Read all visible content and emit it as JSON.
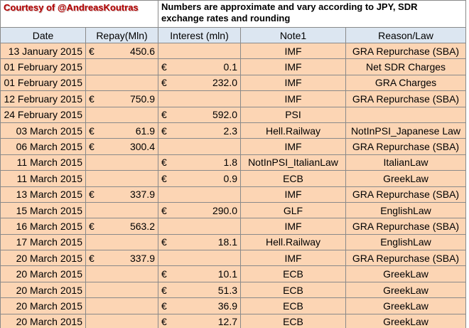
{
  "header": {
    "credit": "Courtesy of @AndreasKoutras",
    "note": "Numbers are approximate and vary according to JPY, SDR exchange rates and rounding"
  },
  "table": {
    "columns": [
      "Date",
      "Repay(Mln)",
      "Interest (mln)",
      "Note1",
      "Reason/Law"
    ],
    "rows": [
      {
        "date": "13 January 2015",
        "repay": {
          "currency": "€",
          "amount": "450.6"
        },
        "interest": null,
        "note": "IMF",
        "reason": "GRA Repurchase (SBA)"
      },
      {
        "date": "01 February 2015",
        "repay": null,
        "interest": {
          "currency": "€",
          "amount": "0.1"
        },
        "note": "IMF",
        "reason": "Net SDR Charges"
      },
      {
        "date": "01 February 2015",
        "repay": null,
        "interest": {
          "currency": "€",
          "amount": "232.0"
        },
        "note": "IMF",
        "reason": "GRA Charges"
      },
      {
        "date": "12 February 2015",
        "repay": {
          "currency": "€",
          "amount": "750.9"
        },
        "interest": null,
        "note": "IMF",
        "reason": "GRA Repurchase (SBA)"
      },
      {
        "date": "24 February 2015",
        "repay": null,
        "interest": {
          "currency": "€",
          "amount": "592.0"
        },
        "note": "PSI",
        "reason": null
      },
      {
        "date": "03 March 2015",
        "repay": {
          "currency": "€",
          "amount": "61.9"
        },
        "interest": {
          "currency": "€",
          "amount": "2.3"
        },
        "note": "Hell.Railway",
        "reason": "NotInPSI_Japanese Law"
      },
      {
        "date": "06 March 2015",
        "repay": {
          "currency": "€",
          "amount": "300.4"
        },
        "interest": null,
        "note": "IMF",
        "reason": "GRA Repurchase (SBA)"
      },
      {
        "date": "11 March 2015",
        "repay": null,
        "interest": {
          "currency": "€",
          "amount": "1.8"
        },
        "note": "NotInPSI_ItalianLaw",
        "reason": "ItalianLaw"
      },
      {
        "date": "11 March 2015",
        "repay": null,
        "interest": {
          "currency": "€",
          "amount": "0.9"
        },
        "note": "ECB",
        "reason": "GreekLaw"
      },
      {
        "date": "13 March 2015",
        "repay": {
          "currency": "€",
          "amount": "337.9"
        },
        "interest": null,
        "note": "IMF",
        "reason": "GRA Repurchase (SBA)"
      },
      {
        "date": "15 March 2015",
        "repay": null,
        "interest": {
          "currency": "€",
          "amount": "290.0"
        },
        "note": "GLF",
        "reason": "EnglishLaw"
      },
      {
        "date": "16 March 2015",
        "repay": {
          "currency": "€",
          "amount": "563.2"
        },
        "interest": null,
        "note": "IMF",
        "reason": "GRA Repurchase (SBA)"
      },
      {
        "date": "17 March 2015",
        "repay": null,
        "interest": {
          "currency": "€",
          "amount": "18.1"
        },
        "note": "Hell.Railway",
        "reason": "EnglishLaw"
      },
      {
        "date": "20 March 2015",
        "repay": {
          "currency": "€",
          "amount": "337.9"
        },
        "interest": null,
        "note": "IMF",
        "reason": "GRA Repurchase (SBA)"
      },
      {
        "date": "20 March 2015",
        "repay": null,
        "interest": {
          "currency": "€",
          "amount": "10.1"
        },
        "note": "ECB",
        "reason": "GreekLaw"
      },
      {
        "date": "20 March 2015",
        "repay": null,
        "interest": {
          "currency": "€",
          "amount": "51.3"
        },
        "note": "ECB",
        "reason": "GreekLaw"
      },
      {
        "date": "20 March 2015",
        "repay": null,
        "interest": {
          "currency": "€",
          "amount": "36.9"
        },
        "note": "ECB",
        "reason": "GreekLaw"
      },
      {
        "date": "20 March 2015",
        "repay": null,
        "interest": {
          "currency": "€",
          "amount": "12.7"
        },
        "note": "ECB",
        "reason": "GreekLaw"
      }
    ]
  }
}
